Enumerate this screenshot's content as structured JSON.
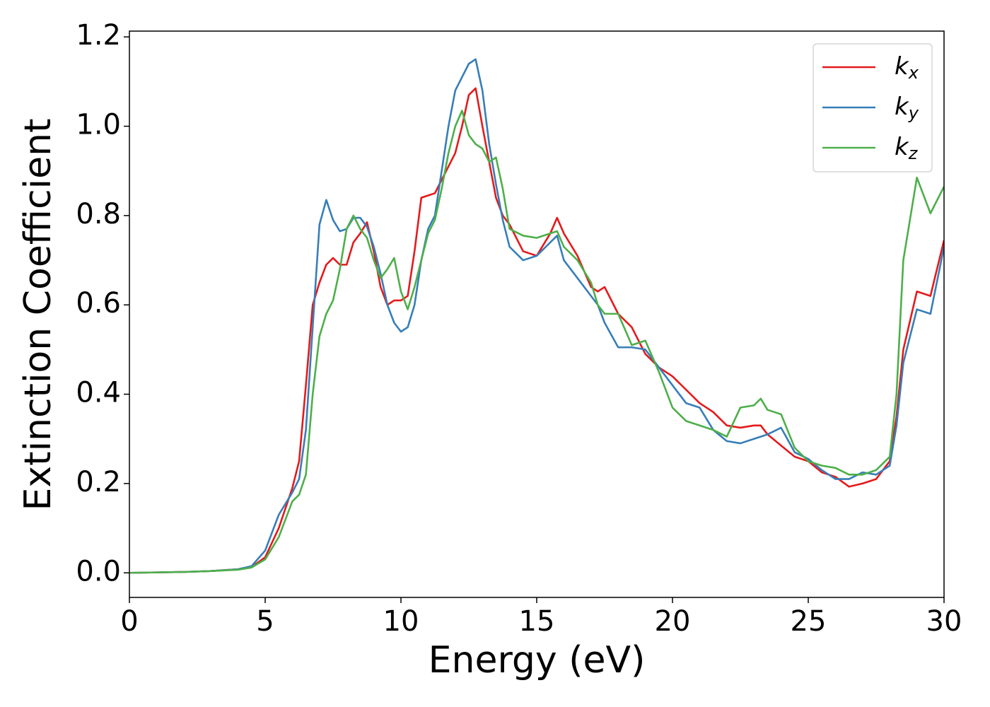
{
  "chart_data": {
    "type": "line",
    "xlabel": "Energy (eV)",
    "ylabel": "Extinction Coefficient",
    "x": [
      0,
      1,
      2,
      3,
      4,
      4.5,
      5,
      5.5,
      6,
      6.25,
      6.5,
      6.75,
      7,
      7.25,
      7.5,
      7.75,
      8,
      8.25,
      8.5,
      8.75,
      9,
      9.25,
      9.5,
      9.75,
      10,
      10.25,
      10.5,
      10.75,
      11,
      11.25,
      11.5,
      11.75,
      12,
      12.25,
      12.5,
      12.75,
      13,
      13.25,
      13.5,
      13.75,
      14,
      14.5,
      15,
      15.5,
      15.75,
      16,
      16.5,
      17,
      17.25,
      17.5,
      18,
      18.5,
      19,
      19.5,
      20,
      20.5,
      21,
      21.5,
      22,
      22.5,
      23,
      23.25,
      23.5,
      24,
      24.5,
      25,
      25.5,
      26,
      26.5,
      27,
      27.5,
      28,
      28.25,
      28.5,
      29,
      29.5,
      30
    ],
    "series": [
      {
        "name": "kx",
        "color": "#e41a1c",
        "values": [
          0,
          0.001,
          0.002,
          0.004,
          0.008,
          0.013,
          0.035,
          0.1,
          0.19,
          0.25,
          0.42,
          0.6,
          0.65,
          0.69,
          0.705,
          0.69,
          0.69,
          0.74,
          0.76,
          0.785,
          0.72,
          0.64,
          0.6,
          0.61,
          0.61,
          0.62,
          0.72,
          0.84,
          0.845,
          0.85,
          0.88,
          0.91,
          0.94,
          1.0,
          1.07,
          1.085,
          1.0,
          0.92,
          0.84,
          0.8,
          0.78,
          0.72,
          0.71,
          0.76,
          0.795,
          0.76,
          0.71,
          0.64,
          0.63,
          0.64,
          0.58,
          0.55,
          0.49,
          0.46,
          0.44,
          0.41,
          0.38,
          0.36,
          0.33,
          0.325,
          0.33,
          0.33,
          0.31,
          0.285,
          0.26,
          0.25,
          0.225,
          0.215,
          0.193,
          0.2,
          0.21,
          0.25,
          0.35,
          0.5,
          0.63,
          0.62,
          0.745
        ]
      },
      {
        "name": "ky",
        "color": "#377eb8",
        "values": [
          0,
          0.001,
          0.002,
          0.004,
          0.008,
          0.015,
          0.05,
          0.13,
          0.18,
          0.21,
          0.32,
          0.55,
          0.78,
          0.835,
          0.79,
          0.765,
          0.77,
          0.795,
          0.795,
          0.775,
          0.73,
          0.67,
          0.6,
          0.56,
          0.54,
          0.55,
          0.6,
          0.7,
          0.77,
          0.8,
          0.9,
          1.0,
          1.08,
          1.11,
          1.14,
          1.15,
          1.08,
          0.96,
          0.87,
          0.79,
          0.73,
          0.7,
          0.71,
          0.74,
          0.755,
          0.7,
          0.66,
          0.62,
          0.6,
          0.56,
          0.505,
          0.505,
          0.5,
          0.46,
          0.42,
          0.38,
          0.37,
          0.32,
          0.295,
          0.29,
          0.3,
          0.305,
          0.31,
          0.325,
          0.27,
          0.255,
          0.23,
          0.21,
          0.21,
          0.225,
          0.22,
          0.24,
          0.33,
          0.47,
          0.59,
          0.58,
          0.73
        ]
      },
      {
        "name": "kz",
        "color": "#4daf4a",
        "values": [
          0,
          0.001,
          0.002,
          0.004,
          0.007,
          0.012,
          0.03,
          0.08,
          0.16,
          0.175,
          0.22,
          0.4,
          0.53,
          0.58,
          0.61,
          0.68,
          0.77,
          0.8,
          0.77,
          0.75,
          0.7,
          0.66,
          0.68,
          0.705,
          0.63,
          0.59,
          0.64,
          0.7,
          0.76,
          0.79,
          0.86,
          0.94,
          1.0,
          1.035,
          0.98,
          0.96,
          0.95,
          0.92,
          0.93,
          0.86,
          0.77,
          0.755,
          0.75,
          0.76,
          0.765,
          0.73,
          0.7,
          0.65,
          0.6,
          0.58,
          0.58,
          0.51,
          0.52,
          0.45,
          0.37,
          0.34,
          0.33,
          0.32,
          0.305,
          0.37,
          0.375,
          0.39,
          0.365,
          0.355,
          0.28,
          0.25,
          0.24,
          0.235,
          0.22,
          0.22,
          0.23,
          0.26,
          0.4,
          0.7,
          0.885,
          0.805,
          0.865
        ]
      }
    ],
    "xlim": [
      0,
      30
    ],
    "xticks": [
      0,
      5,
      10,
      15,
      20,
      25,
      30
    ],
    "ylim": [
      -0.055,
      1.213
    ],
    "yticks": [
      {
        "value": 0,
        "label": "0.0"
      },
      0.2,
      0.4,
      0.6,
      0.8,
      {
        "value": 1,
        "label": "1.0"
      },
      1.2
    ],
    "legend": "upper right",
    "grid": false
  }
}
